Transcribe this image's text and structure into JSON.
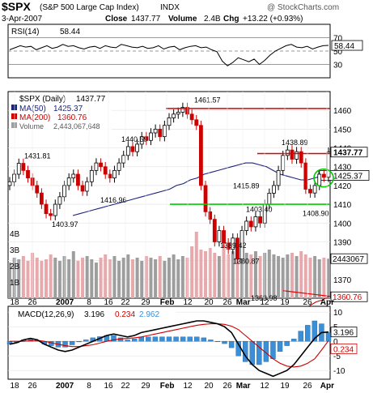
{
  "header": {
    "symbol": "$SPX",
    "name": "(S&P 500 Large Cap Index)",
    "exchange": "INDX",
    "date": "3-Apr-2007",
    "close_label": "Close",
    "close": "1437.77",
    "volume_label": "Volume",
    "volume": "2.4B",
    "chg_label": "Chg",
    "chg": "+13.22 (+0.93%)",
    "source": "@ StockCharts.com"
  },
  "colors": {
    "price_up": "#000000",
    "price_down": "#cc0000",
    "ma50": "#1a237e",
    "ma200": "#cc0000",
    "resistance": "#dd0000",
    "support": "#00cc00",
    "volume_up": "#9e9e9e",
    "volume_down": "#e8a9ad",
    "macd_line": "#000000",
    "macd_signal": "#cc0000",
    "macd_hist": "#3b8fd6"
  },
  "chart_data": {
    "type": "line",
    "x_labels": [
      "18",
      "26",
      "2007",
      "8",
      "16",
      "22",
      "29",
      "Feb",
      "12",
      "20",
      "26",
      "Mar",
      "12",
      "19",
      "26",
      "Apr"
    ],
    "rsi": {
      "label": "RSI(14)",
      "last": "58.44",
      "ticks": [
        "70",
        "50",
        "30"
      ],
      "ylim": [
        10,
        90
      ],
      "values": [
        52,
        55,
        58,
        56,
        57,
        52,
        55,
        58,
        54,
        56,
        60,
        57,
        58,
        55,
        53,
        56,
        57,
        54,
        58,
        56,
        55,
        60,
        58,
        56,
        55,
        57,
        54,
        55,
        58,
        53,
        56,
        57,
        52,
        55,
        57,
        58,
        55,
        56,
        52,
        49,
        35,
        28,
        33,
        40,
        37,
        34,
        38,
        30,
        36,
        44,
        50,
        54,
        58,
        60,
        56,
        55,
        57,
        53,
        56,
        58,
        58.44
      ]
    },
    "price": {
      "label": "$SPX (Daily)",
      "last": "1437.77",
      "ticks": [
        "1460",
        "1450",
        "1440",
        "1430",
        "1420",
        "1410",
        "1400",
        "1390",
        "1380",
        "1370"
      ],
      "ylim": [
        1360,
        1470
      ],
      "closes": [
        1422,
        1426,
        1431.81,
        1428,
        1424,
        1420,
        1416,
        1410,
        1405,
        1403.97,
        1410,
        1414,
        1420,
        1424,
        1426,
        1420,
        1416.96,
        1422,
        1428,
        1432,
        1430,
        1426,
        1424,
        1428,
        1432,
        1436,
        1440.69,
        1438,
        1442,
        1446,
        1444,
        1448,
        1450,
        1446,
        1452,
        1456,
        1458,
        1459,
        1461.57,
        1458,
        1455,
        1452,
        1420,
        1406,
        1402,
        1390,
        1396,
        1389.42,
        1386,
        1392,
        1380.87,
        1396,
        1401,
        1398,
        1403.4,
        1400,
        1410,
        1415.89,
        1420,
        1428,
        1436,
        1438.89,
        1434,
        1438,
        1432,
        1418,
        1416,
        1420,
        1426,
        1424.37,
        1437.77
      ],
      "annotations": [
        "1431.81",
        "1403.97",
        "1416.96",
        "1440.69",
        "1461.57",
        "1415.89",
        "1403.40",
        "1389.42",
        "1380.87",
        "1363.98",
        "1438.89",
        "1408.90"
      ],
      "resistance_levels": [
        1461,
        1437
      ],
      "support_level": 1410
    },
    "ma50": {
      "label": "MA(50)",
      "last": "1425.37",
      "values": [
        1404,
        1405,
        1406,
        1407,
        1408,
        1409,
        1410,
        1411,
        1412,
        1413,
        1414,
        1415,
        1416,
        1417,
        1418,
        1420,
        1421,
        1423,
        1424,
        1426,
        1427,
        1428,
        1429,
        1430,
        1431,
        1432,
        1432,
        1431,
        1430,
        1428,
        1426,
        1425,
        1424,
        1423,
        1423,
        1424,
        1425,
        1425.37
      ]
    },
    "ma200": {
      "label": "MA(200)",
      "last": "1360.76",
      "values": [
        1332,
        1334,
        1336,
        1338,
        1340,
        1342,
        1344,
        1346,
        1348,
        1350,
        1352,
        1354,
        1356,
        1358,
        1359,
        1360.76
      ]
    },
    "volume": {
      "label": "Volume",
      "last": "2,443,067,648",
      "ticks": [
        "4B",
        "3B",
        "2B",
        "1B"
      ],
      "last_tick": "2443067",
      "values": [
        2.2,
        2.5,
        2.4,
        2.6,
        2.3,
        2.8,
        2.5,
        2.3,
        2.4,
        2.7,
        2.5,
        2.3,
        2.6,
        2.4,
        2.9,
        2.3,
        2.5,
        2.6,
        2.4,
        2.2,
        2.5,
        2.7,
        2.4,
        2.6,
        2.3,
        2.5,
        2.7,
        2.4,
        2.5,
        2.3,
        2.6,
        2.5,
        2.4,
        2.6,
        2.3,
        2.5,
        2.7,
        2.4,
        2.6,
        2.5,
        3.2,
        4.1,
        3.0,
        2.9,
        3.1,
        2.8,
        2.6,
        3.3,
        2.7,
        2.9,
        3.4,
        3.0,
        2.8,
        2.7,
        2.9,
        2.6,
        2.8,
        3.0,
        2.7,
        2.6,
        2.5,
        2.7,
        2.8,
        2.6,
        2.9,
        2.7,
        2.5,
        2.6,
        2.4,
        2.5,
        2.44
      ]
    },
    "macd": {
      "label": "MACD(12,26,9)",
      "macd": "3.196",
      "signal": "0.234",
      "hist": "2.962",
      "ticks": [
        "10",
        "5",
        "0",
        "-5",
        "-10"
      ],
      "ylim": [
        -13,
        12
      ],
      "macd_values": [
        -1,
        -0.5,
        0.5,
        1,
        0.5,
        -1,
        -2,
        -3,
        -3.5,
        -3,
        -2,
        -1,
        0,
        1,
        2,
        2.5,
        2,
        1.5,
        2,
        3,
        3.5,
        4,
        4.5,
        5,
        5.5,
        6,
        6.5,
        7,
        7,
        6.5,
        6,
        5,
        3,
        -1,
        -5,
        -8,
        -10,
        -11,
        -12,
        -11,
        -10,
        -8,
        -5,
        -2,
        1,
        3,
        3.196
      ],
      "signal_values": [
        0,
        0,
        0,
        0.2,
        0.3,
        0,
        -0.5,
        -1,
        -1.5,
        -1.8,
        -1.8,
        -1.5,
        -1.2,
        -0.6,
        0,
        0.5,
        0.8,
        1,
        1.2,
        1.5,
        2,
        2.5,
        3,
        3.5,
        4,
        4.5,
        5,
        5.5,
        5.8,
        6,
        6,
        5.8,
        5.2,
        4,
        2,
        0,
        -2,
        -4,
        -6,
        -7.5,
        -8.5,
        -8.8,
        -8.5,
        -7.5,
        -6,
        -3,
        0.234
      ],
      "hist_values": [
        -1,
        -0.5,
        0.5,
        0.8,
        0.2,
        -1,
        -1.5,
        -2,
        -2,
        -1.2,
        -0.2,
        0.5,
        1.2,
        1.6,
        2,
        2,
        1.2,
        0.5,
        0.8,
        1.5,
        1.5,
        1.5,
        1.5,
        1.5,
        1.5,
        1.5,
        1.5,
        1.5,
        1.2,
        0.5,
        0,
        -0.8,
        -2.2,
        -5,
        -7,
        -8,
        -8,
        -7,
        -6,
        -3.5,
        -1.5,
        0.8,
        3.5,
        5.5,
        7,
        6,
        2.962
      ]
    }
  }
}
